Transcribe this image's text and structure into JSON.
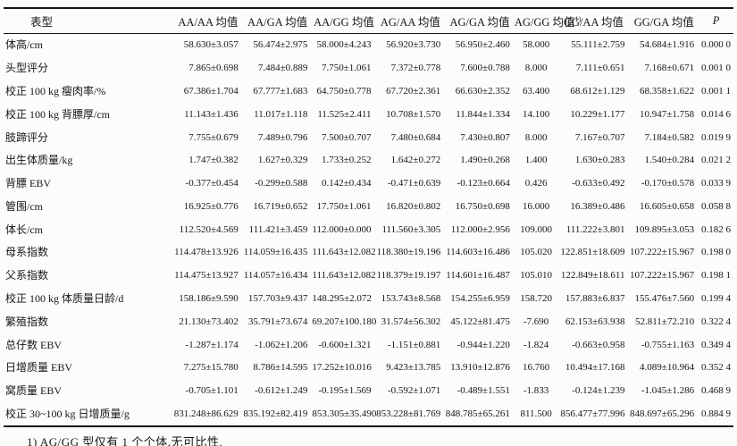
{
  "colors": {
    "ink": "#161616",
    "paper": "#fcfcfa"
  },
  "table": {
    "columns": [
      {
        "key": "phenotype",
        "label": "表型"
      },
      {
        "key": "aa-aa",
        "label": "AA/AA 均值"
      },
      {
        "key": "aa-ga",
        "label": "AA/GA 均值"
      },
      {
        "key": "aa-gg",
        "label": "AA/GG 均值"
      },
      {
        "key": "ag-aa",
        "label": "AG/AA 均值"
      },
      {
        "key": "ag-ga",
        "label": "AG/GA 均值"
      },
      {
        "key": "ag-gg",
        "label": "AG/GG 均值",
        "sup": "1)"
      },
      {
        "key": "gg-aa",
        "label": "GG/AA 均值"
      },
      {
        "key": "gg-ga",
        "label": "GG/GA 均值"
      },
      {
        "key": "p",
        "label": "P",
        "italic": true
      }
    ],
    "rows": [
      {
        "label": "体高/cm",
        "values": [
          "58.630±3.057",
          "56.474±2.975",
          "58.000±4.243",
          "56.920±3.730",
          "56.950±2.460",
          "58.000",
          "55.111±2.759",
          "54.684±1.916",
          "0.000 0"
        ]
      },
      {
        "label": "头型评分",
        "values": [
          "7.865±0.698",
          "7.484±0.889",
          "7.750±1.061",
          "7.372±0.778",
          "7.600±0.788",
          "8.000",
          "7.111±0.651",
          "7.168±0.671",
          "0.001 0"
        ]
      },
      {
        "label": "校正 100 kg 瘦肉率/%",
        "values": [
          "67.386±1.704",
          "67.777±1.683",
          "64.750±0.778",
          "67.720±2.361",
          "66.630±2.352",
          "63.400",
          "68.612±1.129",
          "68.358±1.622",
          "0.001 1"
        ]
      },
      {
        "label": "校正 100 kg 背膘厚/cm",
        "values": [
          "11.143±1.436",
          "11.017±1.118",
          "11.525±2.411",
          "10.708±1.570",
          "11.844±1.334",
          "14.100",
          "10.229±1.177",
          "10.947±1.758",
          "0.014 6"
        ]
      },
      {
        "label": "肢蹄评分",
        "values": [
          "7.755±0.679",
          "7.489±0.796",
          "7.500±0.707",
          "7.480±0.684",
          "7.430±0.807",
          "8.000",
          "7.167±0.707",
          "7.184±0.582",
          "0.019 9"
        ]
      },
      {
        "label": "出生体质量/kg",
        "values": [
          "1.747±0.382",
          "1.627±0.329",
          "1.733±0.252",
          "1.642±0.272",
          "1.490±0.268",
          "1.400",
          "1.630±0.283",
          "1.540±0.284",
          "0.021 2"
        ]
      },
      {
        "label": "背膘 EBV",
        "values": [
          "-0.377±0.454",
          "-0.299±0.588",
          "0.142±0.434",
          "-0.471±0.639",
          "-0.123±0.664",
          "0.426",
          "-0.633±0.492",
          "-0.170±0.578",
          "0.033 9"
        ]
      },
      {
        "label": "管围/cm",
        "values": [
          "16.925±0.776",
          "16.719±0.652",
          "17.750±1.061",
          "16.820±0.802",
          "16.750±0.698",
          "16.000",
          "16.389±0.486",
          "16.605±0.658",
          "0.058 8"
        ]
      },
      {
        "label": "体长/cm",
        "values": [
          "112.520±4.569",
          "111.421±3.459",
          "112.000±0.000",
          "111.560±3.305",
          "112.000±2.956",
          "109.000",
          "111.222±3.801",
          "109.895±3.053",
          "0.182 6"
        ]
      },
      {
        "label": "母系指数",
        "values": [
          "114.478±13.926",
          "114.059±16.435",
          "111.643±12.082",
          "118.380±19.196",
          "114.603±16.486",
          "105.020",
          "122.851±18.609",
          "107.222±15.967",
          "0.198 0"
        ]
      },
      {
        "label": "父系指数",
        "values": [
          "114.475±13.927",
          "114.057±16.434",
          "111.643±12.082",
          "118.379±19.197",
          "114.601±16.487",
          "105.010",
          "122.849±18.611",
          "107.222±15.967",
          "0.198 1"
        ]
      },
      {
        "label": "校正 100 kg 体质量日龄/d",
        "values": [
          "158.186±9.590",
          "157.703±9.437",
          "148.295±2.072",
          "153.743±8.568",
          "154.255±6.959",
          "158.720",
          "157.883±6.837",
          "155.476±7.560",
          "0.199 4"
        ]
      },
      {
        "label": "繁殖指数",
        "values": [
          "21.130±73.402",
          "35.791±73.674",
          "69.207±100.180",
          "31.574±56.302",
          "45.122±81.475",
          "-7.690",
          "62.153±63.938",
          "52.811±72.210",
          "0.322 4"
        ]
      },
      {
        "label": "总仔数 EBV",
        "values": [
          "-1.287±1.174",
          "-1.062±1.206",
          "-0.600±1.321",
          "-1.151±0.881",
          "-0.944±1.220",
          "-1.824",
          "-0.663±0.958",
          "-0.755±1.163",
          "0.349 4"
        ]
      },
      {
        "label": "日增质量 EBV",
        "values": [
          "7.275±15.780",
          "8.786±14.595",
          "17.252±10.016",
          "9.423±13.785",
          "13.910±12.876",
          "16.760",
          "10.494±17.168",
          "4.089±10.964",
          "0.352 4"
        ]
      },
      {
        "label": "窝质量 EBV",
        "values": [
          "-0.705±1.101",
          "-0.612±1.249",
          "-0.195±1.569",
          "-0.592±1.071",
          "-0.489±1.551",
          "-1.833",
          "-0.124±1.239",
          "-1.045±1.286",
          "0.468 9"
        ]
      },
      {
        "label": "校正 30~100 kg 日增质量/g",
        "values": [
          "831.248±86.629",
          "835.192±82.419",
          "853.305±35.490",
          "853.228±81.769",
          "848.785±65.261",
          "811.500",
          "856.477±77.996",
          "848.697±65.296",
          "0.884 9"
        ]
      }
    ],
    "col_widths_pct": [
      23.5,
      9.6,
      9.6,
      8.8,
      9.6,
      9.6,
      6.0,
      9.9,
      9.6,
      4.8
    ]
  },
  "footnote": "1) AG/GG 型仅有 1 个个体,无可比性."
}
